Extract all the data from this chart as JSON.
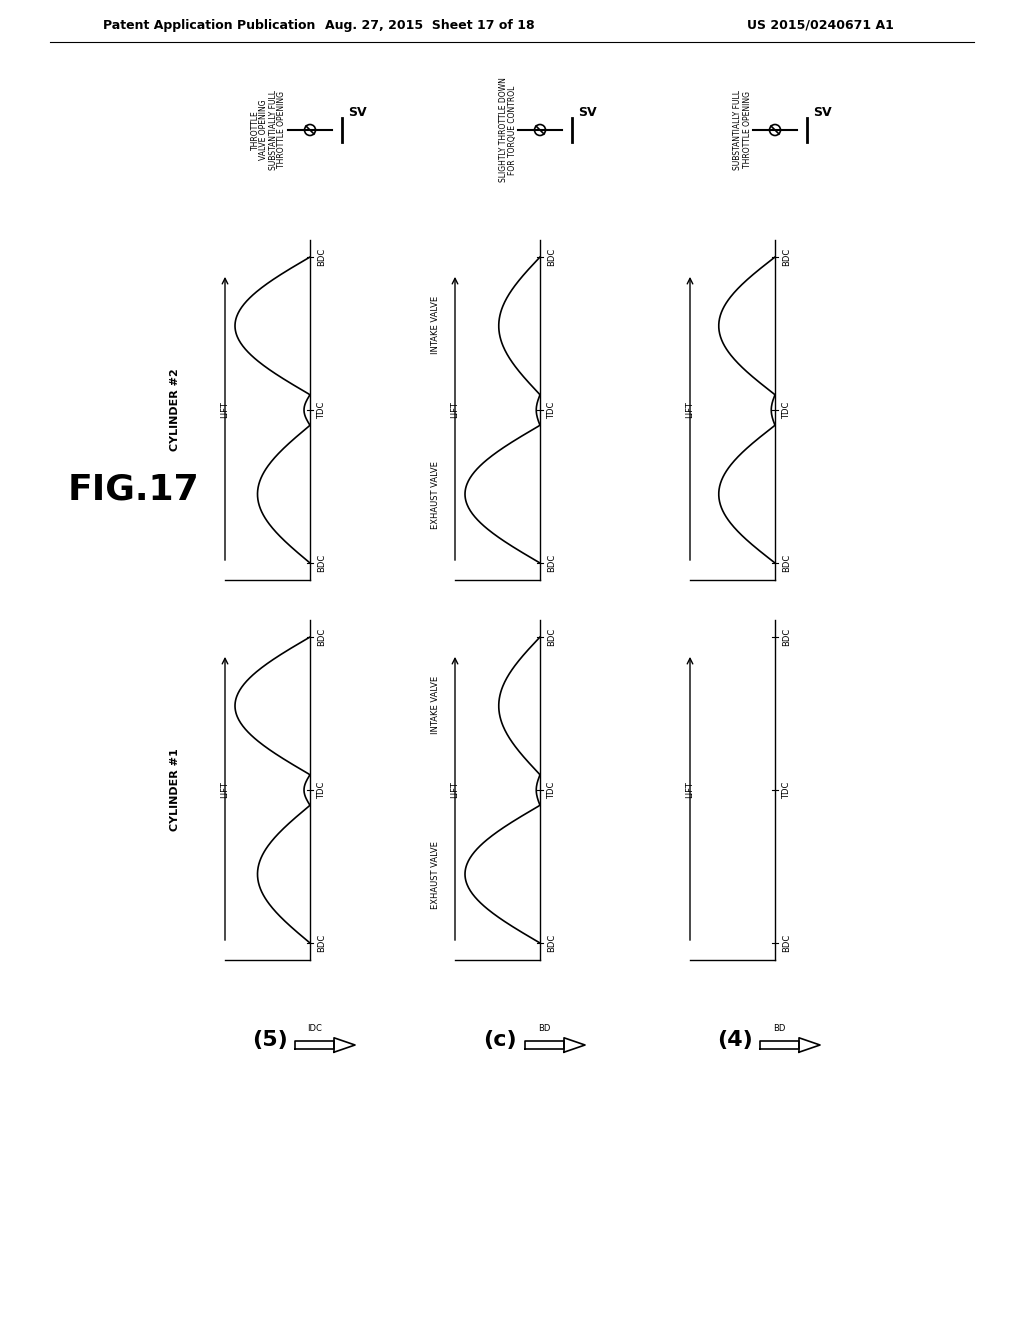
{
  "header_left": "Patent Application Publication",
  "header_mid": "Aug. 27, 2015  Sheet 17 of 18",
  "header_right": "US 2015/0240671 A1",
  "fig_label": "FIG.17",
  "bg_color": "#ffffff",
  "col1_bottom_label": "(5)",
  "col2_bottom_label": "(c)",
  "col3_bottom_label": "(4)",
  "col1_arrow_label": "IDC",
  "col2_arrow_label": "BD",
  "col3_arrow_label": "BD",
  "row1_cyl_label": "CYLINDER #2",
  "row2_cyl_label": "CYLINDER #1",
  "throttle1_line1": "THROTTLE",
  "throttle1_line2": "VALVE OPENING",
  "throttle1_line3": "SUBSTANTIALLY FULL",
  "throttle1_line4": "THROTTLE OPENING",
  "throttle2_line1": "SLIGHTLY THROTTLE DOWN",
  "throttle2_line2": "FOR TORQUE CONTROL",
  "throttle3_line1": "SUBSTANTIALLY FULL",
  "throttle3_line2": "THROTTLE OPENING",
  "sv_label": "SV",
  "lift_label": "LIFT",
  "bdc_label": "BDC",
  "tdc_label": "TDC",
  "intake_valve_label": "INTAKE VALVE",
  "exhaust_valve_label": "EXHAUST VALVE"
}
